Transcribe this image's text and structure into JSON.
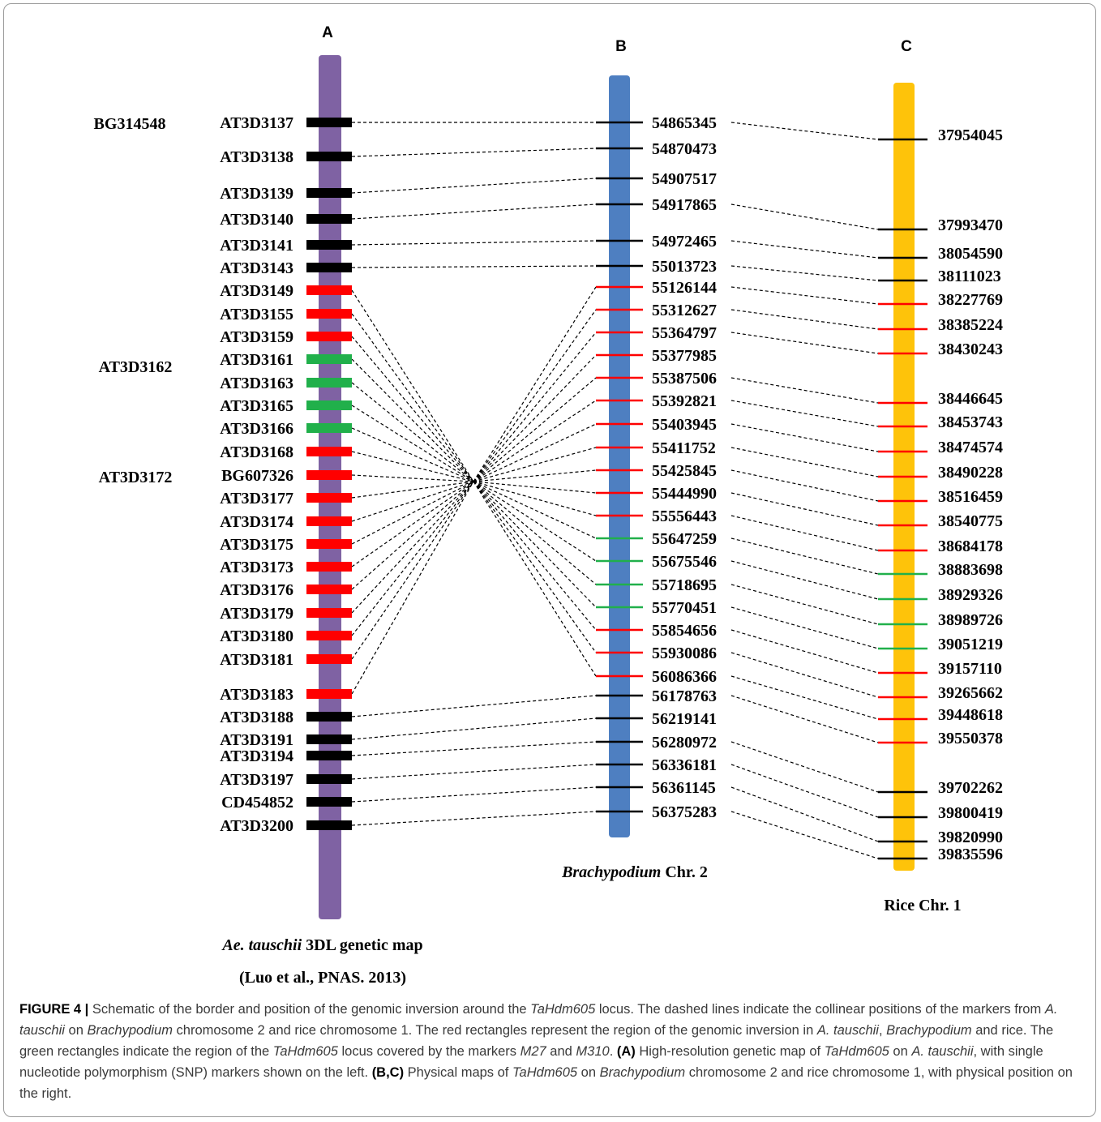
{
  "panels": {
    "a": "A",
    "b": "B",
    "c": "C"
  },
  "colors": {
    "chrA": "#7f62a3",
    "chrB": "#4e7fc1",
    "chrC": "#fec30a",
    "black": "#000000",
    "red": "#ff0000",
    "green": "#21b04b"
  },
  "mapA": {
    "label_italic": "Ae. tauschii",
    "label_rest": " 3DL genetic map",
    "citation": "(Luo et al., PNAS.  2013)",
    "left_labels": [
      "BG314548",
      "AT3D3162",
      "AT3D3172"
    ],
    "markers": [
      {
        "name": "AT3D3137",
        "color": "black"
      },
      {
        "name": "AT3D3138",
        "color": "black"
      },
      {
        "name": "AT3D3139",
        "color": "black"
      },
      {
        "name": "AT3D3140",
        "color": "black"
      },
      {
        "name": "AT3D3141",
        "color": "black"
      },
      {
        "name": "AT3D3143",
        "color": "black"
      },
      {
        "name": "AT3D3149",
        "color": "red"
      },
      {
        "name": "AT3D3155",
        "color": "red"
      },
      {
        "name": "AT3D3159",
        "color": "red"
      },
      {
        "name": "AT3D3161",
        "color": "green"
      },
      {
        "name": "AT3D3163",
        "color": "green"
      },
      {
        "name": "AT3D3165",
        "color": "green"
      },
      {
        "name": "AT3D3166",
        "color": "green"
      },
      {
        "name": "AT3D3168",
        "color": "red"
      },
      {
        "name": "BG607326",
        "color": "red"
      },
      {
        "name": "AT3D3177",
        "color": "red"
      },
      {
        "name": "AT3D3174",
        "color": "red"
      },
      {
        "name": "AT3D3175",
        "color": "red"
      },
      {
        "name": "AT3D3173",
        "color": "red"
      },
      {
        "name": "AT3D3176",
        "color": "red"
      },
      {
        "name": "AT3D3179",
        "color": "red"
      },
      {
        "name": "AT3D3180",
        "color": "red"
      },
      {
        "name": "AT3D3181",
        "color": "red"
      },
      {
        "name": "AT3D3183",
        "color": "red"
      },
      {
        "name": "AT3D3188",
        "color": "black"
      },
      {
        "name": "AT3D3191",
        "color": "black"
      },
      {
        "name": "AT3D3194",
        "color": "black"
      },
      {
        "name": "AT3D3197",
        "color": "black"
      },
      {
        "name": "CD454852",
        "color": "black"
      },
      {
        "name": "AT3D3200",
        "color": "black"
      }
    ]
  },
  "mapB": {
    "label_italic": "Brachypodium",
    "label_rest": " Chr. 2",
    "markers": [
      {
        "pos": "54865345",
        "color": "black"
      },
      {
        "pos": "54870473",
        "color": "black"
      },
      {
        "pos": "54907517",
        "color": "black"
      },
      {
        "pos": "54917865",
        "color": "black"
      },
      {
        "pos": "54972465",
        "color": "black"
      },
      {
        "pos": "55013723",
        "color": "black"
      },
      {
        "pos": "55126144",
        "color": "red"
      },
      {
        "pos": "55312627",
        "color": "red"
      },
      {
        "pos": "55364797",
        "color": "red"
      },
      {
        "pos": "55377985",
        "color": "red"
      },
      {
        "pos": "55387506",
        "color": "red"
      },
      {
        "pos": "55392821",
        "color": "red"
      },
      {
        "pos": "55403945",
        "color": "red"
      },
      {
        "pos": "55411752",
        "color": "red"
      },
      {
        "pos": "55425845",
        "color": "red"
      },
      {
        "pos": "55444990",
        "color": "red"
      },
      {
        "pos": "55556443",
        "color": "red"
      },
      {
        "pos": "55647259",
        "color": "green"
      },
      {
        "pos": "55675546",
        "color": "green"
      },
      {
        "pos": "55718695",
        "color": "green"
      },
      {
        "pos": "55770451",
        "color": "green"
      },
      {
        "pos": "55854656",
        "color": "red"
      },
      {
        "pos": "55930086",
        "color": "red"
      },
      {
        "pos": "56086366",
        "color": "red"
      },
      {
        "pos": "56178763",
        "color": "black"
      },
      {
        "pos": "56219141",
        "color": "black"
      },
      {
        "pos": "56280972",
        "color": "black"
      },
      {
        "pos": "56336181",
        "color": "black"
      },
      {
        "pos": "56361145",
        "color": "black"
      },
      {
        "pos": "56375283",
        "color": "black"
      }
    ]
  },
  "mapC": {
    "label": "Rice Chr. 1",
    "markers": [
      {
        "pos": "37954045",
        "color": "black"
      },
      {
        "pos": "37993470",
        "color": "black"
      },
      {
        "pos": "38054590",
        "color": "black"
      },
      {
        "pos": "38111023",
        "color": "black"
      },
      {
        "pos": "38227769",
        "color": "red"
      },
      {
        "pos": "38385224",
        "color": "red"
      },
      {
        "pos": "38430243",
        "color": "red"
      },
      {
        "pos": "38446645",
        "color": "red"
      },
      {
        "pos": "38453743",
        "color": "red"
      },
      {
        "pos": "38474574",
        "color": "red"
      },
      {
        "pos": "38490228",
        "color": "red"
      },
      {
        "pos": "38516459",
        "color": "red"
      },
      {
        "pos": "38540775",
        "color": "red"
      },
      {
        "pos": "38684178",
        "color": "red"
      },
      {
        "pos": "38883698",
        "color": "green"
      },
      {
        "pos": "38929326",
        "color": "green"
      },
      {
        "pos": "38989726",
        "color": "green"
      },
      {
        "pos": "39051219",
        "color": "green"
      },
      {
        "pos": "39157110",
        "color": "red"
      },
      {
        "pos": "39265662",
        "color": "red"
      },
      {
        "pos": "39448618",
        "color": "red"
      },
      {
        "pos": "39550378",
        "color": "red"
      },
      {
        "pos": "39702262",
        "color": "black"
      },
      {
        "pos": "39800419",
        "color": "black"
      },
      {
        "pos": "39820990",
        "color": "black"
      },
      {
        "pos": "39835596",
        "color": "black"
      }
    ]
  },
  "caption": {
    "figure_label": "FIGURE 4 |",
    "s1a": " Schematic of the border and position of the genomic inversion around the ",
    "locus": "TaHdm605",
    "s1b": " locus. The dashed lines indicate the collinear positions of the markers from ",
    "s1c": "A. tauschii",
    "s1d": " on ",
    "s1e": "Brachypodium",
    "s1f": " chromosome 2 and rice chromosome 1. The red rectangles represent the region of the genomic inversion in ",
    "s2a": "A. tauschii",
    "s2b": ", ",
    "s2c": "Brachypodium",
    "s2d": " and rice. The green rectangles indicate the region of the ",
    "s2e": "TaHdm605",
    "s2f": " locus covered by the markers ",
    "s2g": "M27",
    "s2h": " and ",
    "s2i": "M310",
    "s2j": ". ",
    "pa": "(A)",
    "s3a": " High-resolution genetic map of ",
    "s3b": "TaHdm605",
    "s3c": " on ",
    "s3d": "A. tauschii",
    "s3e": ", with single nucleotide polymorphism (SNP) markers shown on the left. ",
    "pbc": "(B,C)",
    "s4a": " Physical maps of ",
    "s4b": "TaHdm605",
    "s4c": " on ",
    "s4d": "Brachypodium",
    "s4e": " chromosome 2 and rice chromosome 1, with physical position on the right."
  }
}
